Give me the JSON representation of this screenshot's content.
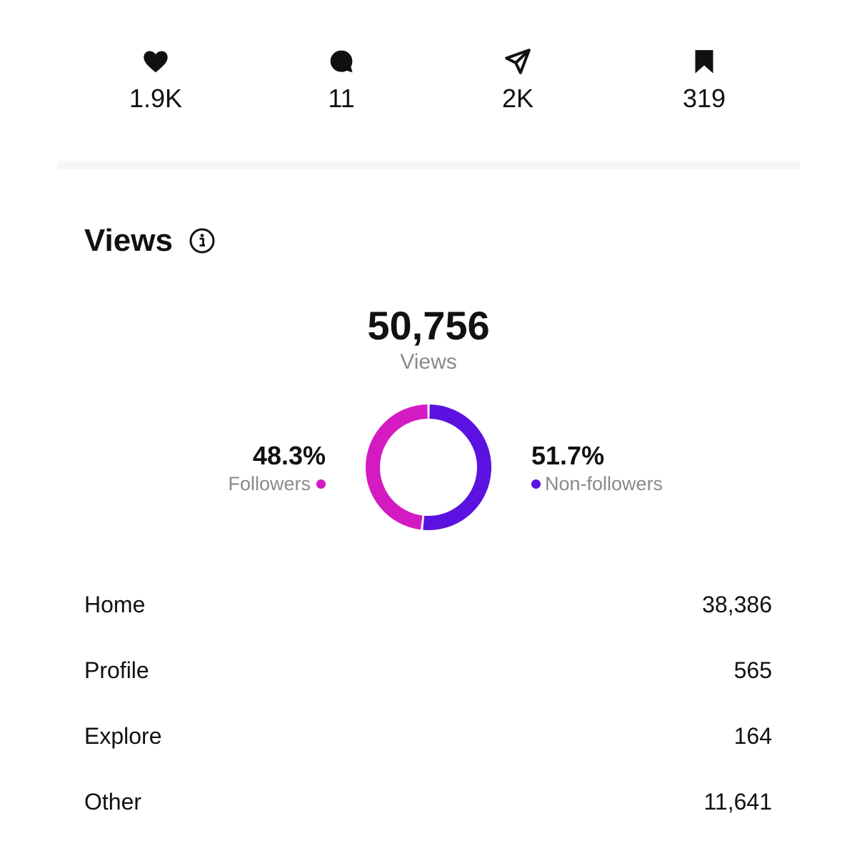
{
  "interactions": [
    {
      "icon": "heart-icon",
      "value": "1.9K"
    },
    {
      "icon": "comment-icon",
      "value": "11"
    },
    {
      "icon": "share-icon",
      "value": "2K"
    },
    {
      "icon": "bookmark-icon",
      "value": "319"
    }
  ],
  "views": {
    "title": "Views",
    "info_icon": "info-icon",
    "total": "50,756",
    "total_label": "Views"
  },
  "chart_data": {
    "type": "pie",
    "donut": true,
    "series": [
      {
        "name": "Followers",
        "value": 48.3,
        "label": "48.3%",
        "color": "#d41bc2"
      },
      {
        "name": "Non-followers",
        "value": 51.7,
        "label": "51.7%",
        "color": "#5b12e0"
      }
    ]
  },
  "sources": [
    {
      "label": "Home",
      "value": "38,386"
    },
    {
      "label": "Profile",
      "value": "565"
    },
    {
      "label": "Explore",
      "value": "164"
    },
    {
      "label": "Other",
      "value": "11,641"
    }
  ],
  "colors": {
    "followers": "#d41bc2",
    "non_followers": "#5b12e0",
    "muted_text": "#8a8a8a",
    "divider": "#f6f6f6"
  }
}
